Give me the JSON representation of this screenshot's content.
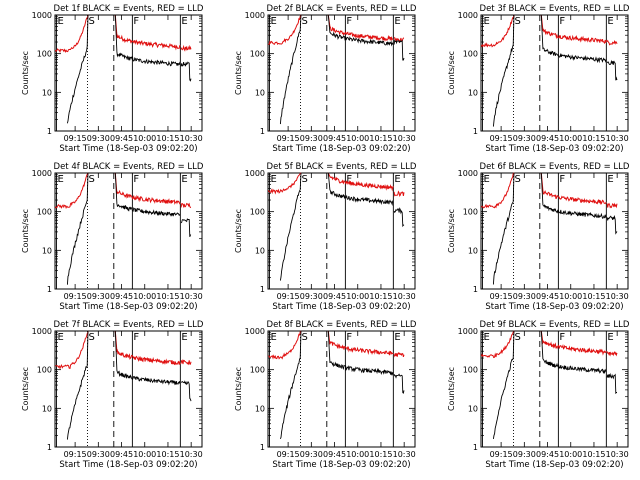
{
  "chart_data": {
    "type": "line",
    "x_ticks": [
      "09:15",
      "09:30",
      "09:45",
      "10:00",
      "10:15",
      "10:30"
    ],
    "xlabel": "Start Time (18-Sep-03 09:02:20)",
    "ylabel": "Counts/sec",
    "yscale": "log",
    "ylim": [
      1,
      1000
    ],
    "y_ticks": [
      "1",
      "10",
      "100",
      "1000"
    ],
    "markers": [
      {
        "label": "E",
        "style": "solid",
        "time": "09:03"
      },
      {
        "label": "S",
        "style": "dotted",
        "time": "09:23"
      },
      {
        "label": "",
        "style": "dashed",
        "time": "09:40"
      },
      {
        "label": "F",
        "style": "solid",
        "time": "09:52"
      },
      {
        "label": "E",
        "style": "solid",
        "time": "10:23"
      }
    ],
    "series_legend": {
      "black": "Events",
      "red": "LLD"
    },
    "panels": [
      {
        "title": "Det 1f BLACK = Events, RED = LLD",
        "red_level": 200,
        "black_level": 70,
        "red_end": 140,
        "black_end": 55
      },
      {
        "title": "Det 2f BLACK = Events, RED = LLD",
        "red_level": 320,
        "black_level": 240,
        "red_end": 240,
        "black_end": 200
      },
      {
        "title": "Det 3f BLACK = Events, RED = LLD",
        "red_level": 280,
        "black_level": 90,
        "red_end": 200,
        "black_end": 60
      },
      {
        "title": "Det 4f BLACK = Events, RED = LLD",
        "red_level": 230,
        "black_level": 110,
        "red_end": 150,
        "black_end": 60
      },
      {
        "title": "Det 5f BLACK = Events, RED = LLD",
        "red_level": 560,
        "black_level": 230,
        "red_end": 300,
        "black_end": 110
      },
      {
        "title": "Det 6f BLACK = Events, RED = LLD",
        "red_level": 230,
        "black_level": 100,
        "red_end": 150,
        "black_end": 70
      },
      {
        "title": "Det 7f BLACK = Events, RED = LLD",
        "red_level": 200,
        "black_level": 60,
        "red_end": 160,
        "black_end": 45
      },
      {
        "title": "Det 8f BLACK = Events, RED = LLD",
        "red_level": 350,
        "black_level": 110,
        "red_end": 250,
        "black_end": 70
      },
      {
        "title": "Det 9f BLACK = Events, RED = LLD",
        "red_level": 380,
        "black_level": 120,
        "red_end": 260,
        "black_end": 70
      }
    ]
  }
}
